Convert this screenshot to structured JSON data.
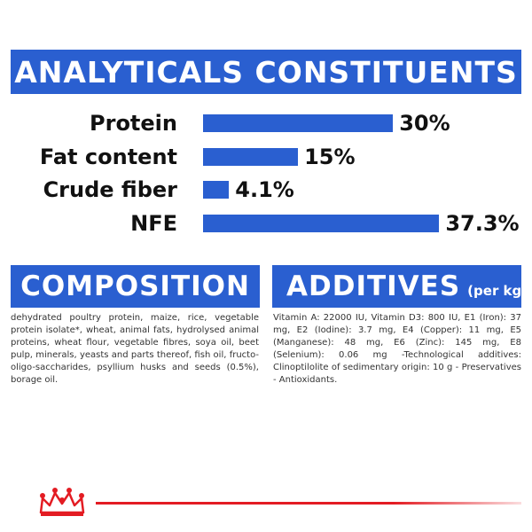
{
  "header": {
    "title": "ANALYTICALS CONSTITUENTS"
  },
  "constituents": [
    {
      "label": "Protein",
      "value": "30%",
      "amount": 30
    },
    {
      "label": "Fat content",
      "value": "15%",
      "amount": 15
    },
    {
      "label": "Crude fiber",
      "value": "4.1%",
      "amount": 4.1
    },
    {
      "label": "NFE",
      "value": "37.3%",
      "amount": 37.3
    }
  ],
  "composition": {
    "title": "COMPOSITION",
    "text": "dehydrated poultry protein, maize, rice, vegetable protein isolate*, wheat, animal fats, hydrolysed animal proteins, wheat flour, vegetable fibres, soya oil, beet pulp, minerals, yeasts and parts thereof, fish oil, fructo-oligo-saccharides, psyllium husks and seeds (0.5%), borage oil."
  },
  "additives": {
    "title": "ADDITIVES",
    "subtitle": "(per kg)",
    "text": "Vitamin A: 22000 IU, Vitamin D3: 800 IU, E1 (Iron): 37 mg, E2 (Iodine): 3.7 mg, E4 (Copper): 11 mg, E5 (Manganese): 48 mg, E6 (Zinc): 145 mg, E8 (Selenium): 0.06 mg -Technological additives: Clinoptilolite of sedimentary origin: 10 g - Preservatives - Antioxidants."
  },
  "colors": {
    "brand_blue": "#2a5fd0",
    "brand_red": "#e31c23"
  },
  "icons": {
    "logo": "royal-crown-logo-icon"
  }
}
